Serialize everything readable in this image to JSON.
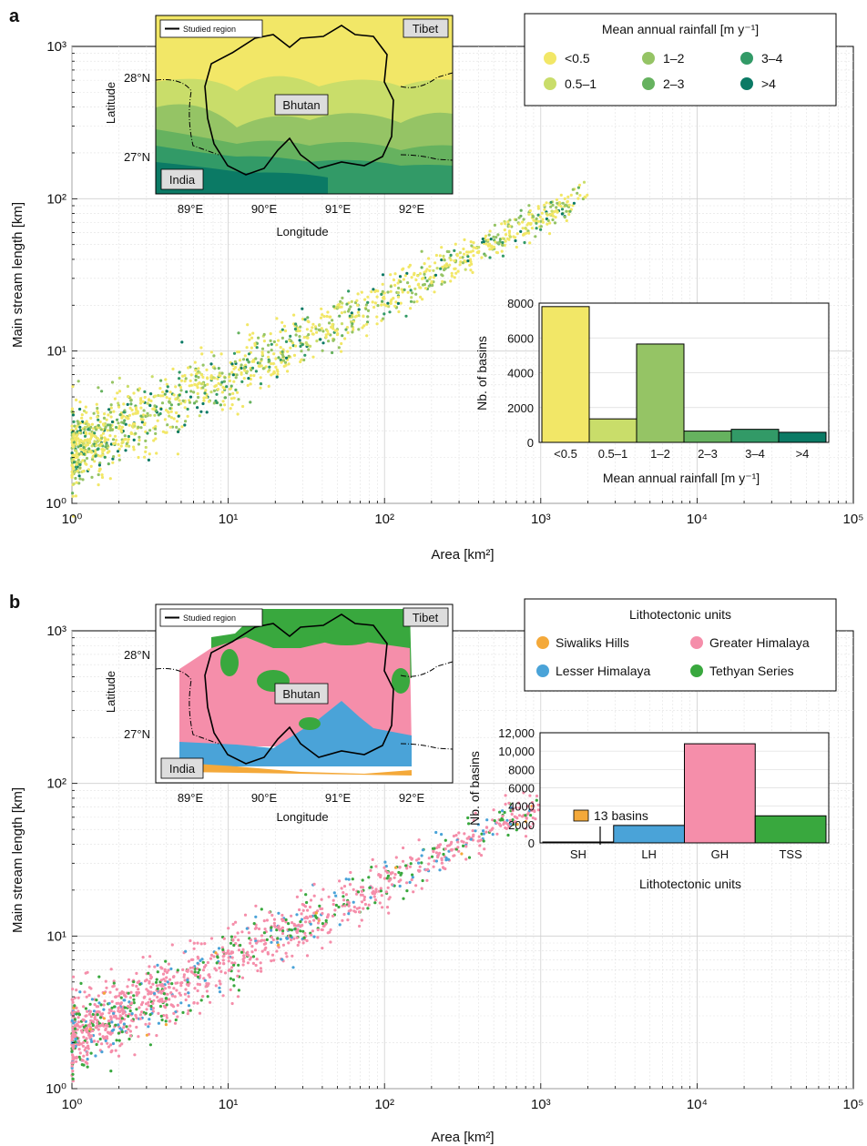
{
  "colors": {
    "rain": [
      "#f2e767",
      "#c9dd6a",
      "#95c465",
      "#66b25f",
      "#329a67",
      "#0b7a65"
    ],
    "litho": [
      "#f4a93a",
      "#4aa3d8",
      "#f58eaa",
      "#39a83e"
    ]
  },
  "panel_a": {
    "label": "a",
    "map": {
      "legend_label": "Studied region",
      "tibet": "Tibet",
      "bhutan": "Bhutan",
      "india": "India",
      "lat_ticks": [
        "28°N",
        "27°N"
      ],
      "lon_ticks": [
        "89°E",
        "90°E",
        "91°E",
        "92°E"
      ],
      "xlabel": "Longitude",
      "ylabel": "Latitude"
    },
    "legend": {
      "title": "Mean annual rainfall [m y⁻¹]",
      "items": [
        "<0.5",
        "0.5–1",
        "1–2",
        "2–3",
        "3–4",
        ">4"
      ]
    }
  },
  "panel_b": {
    "label": "b",
    "map": {
      "legend_label": "Studied region",
      "tibet": "Tibet",
      "bhutan": "Bhutan",
      "india": "India",
      "lat_ticks": [
        "28°N",
        "27°N"
      ],
      "lon_ticks": [
        "89°E",
        "90°E",
        "91°E",
        "92°E"
      ],
      "xlabel": "Longitude",
      "ylabel": "Latitude"
    },
    "legend": {
      "title": "Lithotectonic units",
      "items": [
        "Siwaliks Hills",
        "Lesser Himalaya",
        "Greater Himalaya",
        "Tethyan Series"
      ]
    },
    "annotation": "13 basins"
  },
  "chart_data": [
    {
      "type": "scatter",
      "panel": "a",
      "xlabel": "Area [km²]",
      "ylabel": "Main stream length [km]",
      "xscale": "log",
      "yscale": "log",
      "xlim": [
        1,
        100000
      ],
      "ylim": [
        1,
        1000
      ],
      "xticks": [
        "10⁰",
        "10¹",
        "10²",
        "10³",
        "10⁴",
        "10⁵"
      ],
      "yticks": [
        "10⁰",
        "10¹",
        "10²",
        "10³"
      ],
      "grid": true,
      "trend": {
        "x": [
          1,
          10,
          100,
          1000,
          2000
        ],
        "y": [
          2.2,
          6.8,
          22,
          75,
          105
        ]
      },
      "series_labels": [
        "<0.5",
        "0.5–1",
        "1–2",
        "2–3",
        "3–4",
        ">4"
      ]
    },
    {
      "type": "bar",
      "panel": "a-inset",
      "categories": [
        "<0.5",
        "0.5–1",
        "1–2",
        "2–3",
        "3–4",
        ">4"
      ],
      "values": [
        7800,
        1350,
        5650,
        650,
        750,
        580
      ],
      "xlabel": "Mean annual rainfall [m y⁻¹]",
      "ylabel": "Nb. of basins",
      "ylim": [
        0,
        8000
      ],
      "yticks": [
        "0",
        "2000",
        "4000",
        "6000",
        "8000"
      ]
    },
    {
      "type": "scatter",
      "panel": "b",
      "xlabel": "Area [km²]",
      "ylabel": "Main stream length [km]",
      "xscale": "log",
      "yscale": "log",
      "xlim": [
        1,
        100000
      ],
      "ylim": [
        1,
        1000
      ],
      "xticks": [
        "10⁰",
        "10¹",
        "10²",
        "10³",
        "10⁴",
        "10⁵"
      ],
      "yticks": [
        "10⁰",
        "10¹",
        "10²",
        "10³"
      ],
      "grid": true,
      "trend": {
        "x": [
          1,
          10,
          100,
          1000,
          3500
        ],
        "y": [
          2.2,
          6.8,
          22,
          75,
          150
        ]
      },
      "series_labels": [
        "Siwaliks Hills",
        "Lesser Himalaya",
        "Greater Himalaya",
        "Tethyan Series"
      ]
    },
    {
      "type": "bar",
      "panel": "b-inset",
      "categories": [
        "SH",
        "LH",
        "GH",
        "TSS"
      ],
      "values": [
        13,
        1900,
        10800,
        2950
      ],
      "xlabel": "Lithotectonic units",
      "ylabel": "Nb. of basins",
      "ylim": [
        0,
        12000
      ],
      "yticks": [
        "0",
        "2000",
        "4000",
        "6000",
        "8000",
        "10,000",
        "12,000"
      ]
    }
  ]
}
